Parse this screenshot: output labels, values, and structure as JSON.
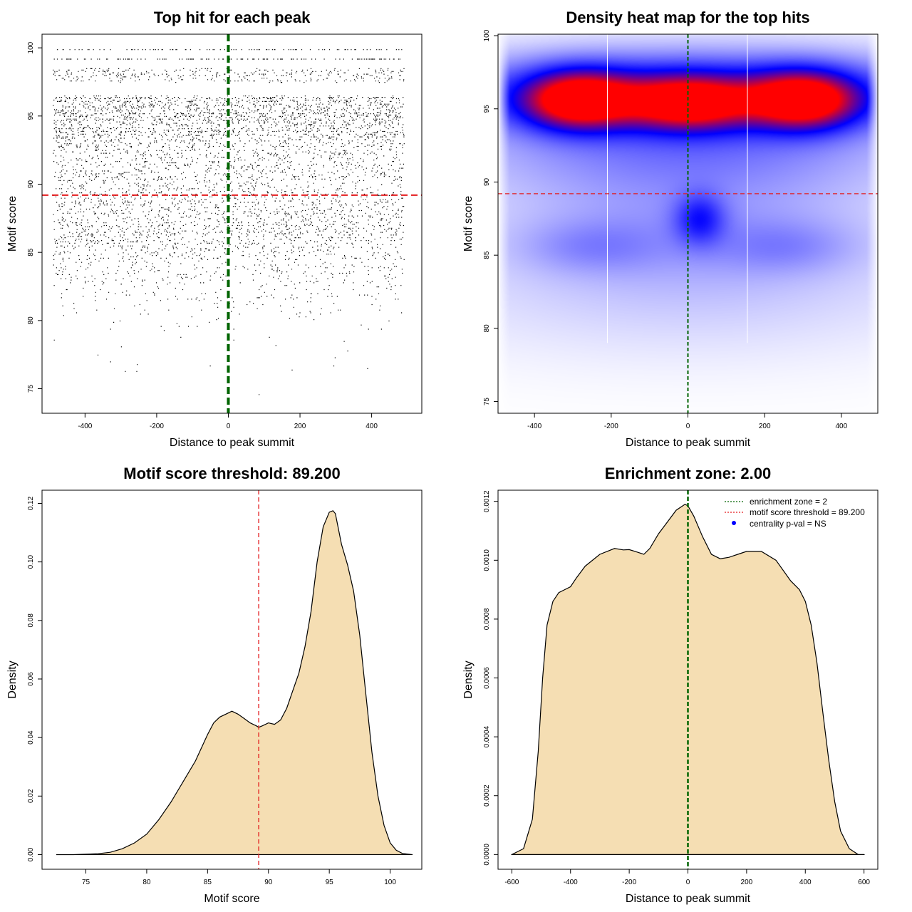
{
  "colors": {
    "threshold_line": "#e31a1c",
    "summit_line": "#006400",
    "density_fill": "#f5deb3",
    "heat_low": "#ffffff",
    "heat_mid": "#0000ff",
    "heat_high": "#ff0000",
    "legend_point": "#0000ff"
  },
  "chart_data": [
    {
      "id": "scatter",
      "type": "scatter",
      "title": "Top hit for each peak",
      "xlabel": "Distance to peak summit",
      "ylabel": "Motif score",
      "xlim": [
        -520,
        540
      ],
      "ylim": [
        73.2,
        101
      ],
      "xticks": [
        -400,
        -200,
        0,
        200,
        400
      ],
      "yticks": [
        75,
        80,
        85,
        90,
        95,
        100
      ],
      "x_range": [
        -490,
        490
      ],
      "score_distribution": [
        [
          99.9,
          0.45
        ],
        [
          99.2,
          0.55
        ],
        [
          98,
          2
        ],
        [
          96,
          3.2
        ],
        [
          95,
          3.4
        ],
        [
          94,
          2.8
        ],
        [
          93,
          1.9
        ],
        [
          92,
          1.6
        ],
        [
          91,
          1.6
        ],
        [
          90,
          1.5
        ],
        [
          89,
          1.7
        ],
        [
          88,
          1.9
        ],
        [
          87,
          1.8
        ],
        [
          86,
          1.6
        ],
        [
          85,
          1.2
        ],
        [
          84,
          0.8
        ],
        [
          83,
          0.55
        ],
        [
          82,
          0.35
        ],
        [
          81,
          0.22
        ],
        [
          80,
          0.12
        ],
        [
          79,
          0.06
        ],
        [
          78,
          0.03
        ],
        [
          77,
          0.015
        ],
        [
          76.7,
          0.01
        ],
        [
          74.2,
          0.005
        ]
      ],
      "n_points": 16000,
      "score_threshold": 89.2,
      "summit_position": 0
    },
    {
      "id": "heatmap",
      "type": "heatmap",
      "title": "Density heat map for the top hits",
      "xlabel": "Distance to peak summit",
      "ylabel": "Motif score",
      "xlim": [
        -495,
        495
      ],
      "ylim": [
        74.2,
        100.1
      ],
      "xticks": [
        -400,
        -200,
        0,
        200,
        400
      ],
      "yticks": [
        75,
        80,
        85,
        90,
        95,
        100
      ],
      "blobs": [
        {
          "x": -285,
          "y": 95.6,
          "sx": 95,
          "sy": 1.3,
          "w": 1.0
        },
        {
          "x": 300,
          "y": 95.6,
          "sx": 95,
          "sy": 1.3,
          "w": 1.0
        },
        {
          "x": 0,
          "y": 95.4,
          "sx": 110,
          "sy": 1.2,
          "w": 0.85
        },
        {
          "x": 0,
          "y": 96.0,
          "sx": 420,
          "sy": 1.8,
          "w": 0.55
        },
        {
          "x": 0,
          "y": 92.0,
          "sx": 380,
          "sy": 2.0,
          "w": 0.18
        },
        {
          "x": 30,
          "y": 87.5,
          "sx": 45,
          "sy": 1.2,
          "w": 0.32
        },
        {
          "x": 0,
          "y": 87.0,
          "sx": 340,
          "sy": 2.8,
          "w": 0.13
        },
        {
          "x": -250,
          "y": 85.6,
          "sx": 120,
          "sy": 1.2,
          "w": 0.1
        },
        {
          "x": 250,
          "y": 85.6,
          "sx": 120,
          "sy": 1.2,
          "w": 0.1
        },
        {
          "x": 0,
          "y": 82.5,
          "sx": 450,
          "sy": 3.0,
          "w": 0.05
        }
      ],
      "vertical_lines": [
        -210,
        155
      ],
      "score_threshold": 89.2,
      "summit_position": 0
    },
    {
      "id": "score_density",
      "type": "area",
      "title": "Motif score threshold: 89.200",
      "xlabel": "Motif score",
      "ylabel": "Density",
      "xlim": [
        71.4,
        102.6
      ],
      "ylim": [
        -0.005,
        0.1245
      ],
      "xticks": [
        75,
        80,
        85,
        90,
        95,
        100
      ],
      "yticks": [
        0.0,
        0.02,
        0.04,
        0.06,
        0.08,
        0.1,
        0.12
      ],
      "ytick_labels": [
        "0.00",
        "0.02",
        "0.04",
        "0.06",
        "0.08",
        "0.10",
        "0.12"
      ],
      "x": [
        72.6,
        74,
        76,
        77,
        78,
        79,
        80,
        81,
        82,
        83,
        84,
        85,
        85.5,
        86,
        86.5,
        87,
        87.5,
        88,
        88.5,
        89,
        89.2,
        89.5,
        90,
        90.5,
        91,
        91.5,
        92,
        92.5,
        93,
        93.5,
        94,
        94.5,
        95,
        95.3,
        95.5,
        96,
        96.5,
        97,
        97.5,
        98,
        98.5,
        99,
        99.5,
        100,
        100.5,
        101,
        101.8
      ],
      "y": [
        0.0,
        0.0,
        0.0003,
        0.0008,
        0.002,
        0.004,
        0.007,
        0.012,
        0.018,
        0.025,
        0.032,
        0.041,
        0.045,
        0.047,
        0.048,
        0.049,
        0.048,
        0.0465,
        0.045,
        0.044,
        0.0435,
        0.044,
        0.045,
        0.0445,
        0.046,
        0.05,
        0.056,
        0.062,
        0.071,
        0.083,
        0.1,
        0.112,
        0.117,
        0.1175,
        0.1165,
        0.106,
        0.099,
        0.09,
        0.075,
        0.055,
        0.035,
        0.02,
        0.01,
        0.004,
        0.0015,
        0.0004,
        0.0
      ],
      "score_threshold": 89.2
    },
    {
      "id": "position_density",
      "type": "area",
      "title": "Enrichment zone: 2.00",
      "xlabel": "Distance to peak summit",
      "ylabel": "Density",
      "xlim": [
        -647,
        647
      ],
      "ylim": [
        -5e-05,
        0.001238
      ],
      "xticks": [
        -600,
        -400,
        -200,
        0,
        200,
        400,
        600
      ],
      "yticks": [
        0.0,
        0.0002,
        0.0004,
        0.0006,
        0.0008,
        0.001,
        0.0012
      ],
      "ytick_labels": [
        "0.0000",
        "0.0002",
        "0.0004",
        "0.0006",
        "0.0008",
        "0.0010",
        "0.0012"
      ],
      "x": [
        -600,
        -560,
        -530,
        -510,
        -495,
        -480,
        -460,
        -440,
        -420,
        -400,
        -380,
        -350,
        -300,
        -250,
        -220,
        -200,
        -180,
        -150,
        -130,
        -100,
        -70,
        -40,
        -10,
        0,
        20,
        50,
        80,
        110,
        140,
        170,
        200,
        250,
        300,
        350,
        380,
        400,
        420,
        440,
        460,
        480,
        500,
        520,
        550,
        580,
        600
      ],
      "y": [
        0.0,
        2e-05,
        0.00012,
        0.00035,
        0.0006,
        0.00078,
        0.00086,
        0.00089,
        0.0009,
        0.00091,
        0.00094,
        0.00098,
        0.00102,
        0.00104,
        0.001035,
        0.001036,
        0.00103,
        0.00102,
        0.00104,
        0.00109,
        0.00113,
        0.00117,
        0.00119,
        0.001185,
        0.00115,
        0.00108,
        0.00102,
        0.001005,
        0.00101,
        0.00102,
        0.00103,
        0.00103,
        0.001,
        0.00093,
        0.0009,
        0.00086,
        0.00078,
        0.00065,
        0.00048,
        0.00032,
        0.00018,
        8e-05,
        2e-05,
        0.0,
        0.0
      ],
      "enrichment_zone_center": 0,
      "legend": [
        {
          "label": "enrichment zone = 2",
          "style": "dotted-line",
          "color": "#006400"
        },
        {
          "label": "motif score threshold = 89.200",
          "style": "dotted-line",
          "color": "#e31a1c"
        },
        {
          "label": "centrality p-val = NS",
          "style": "point",
          "color": "#0000ff"
        }
      ],
      "legend_position": "top-right"
    }
  ]
}
